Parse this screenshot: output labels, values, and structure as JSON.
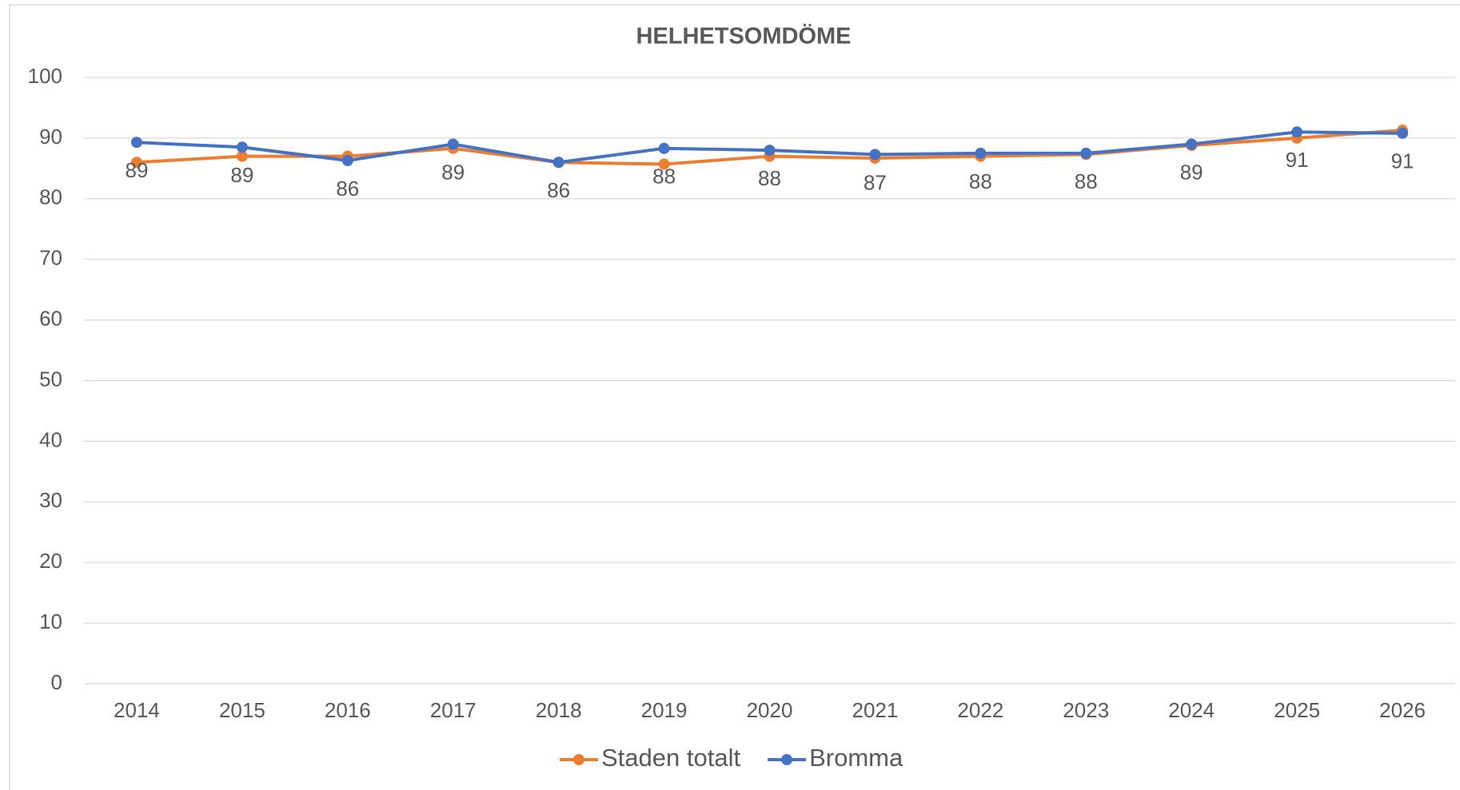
{
  "chart_data": {
    "type": "line",
    "title": "HELHETSOMDÖME",
    "categories": [
      "2014",
      "2015",
      "2016",
      "2017",
      "2018",
      "2019",
      "2020",
      "2021",
      "2022",
      "2023",
      "2024",
      "2025",
      "2026"
    ],
    "series": [
      {
        "name": "Staden totalt",
        "color": "#ed7d31",
        "values": [
          86,
          87,
          87,
          88.3,
          86,
          85.7,
          87,
          86.7,
          87,
          87.3,
          88.8,
          90,
          91.3
        ]
      },
      {
        "name": "Bromma",
        "color": "#4472c4",
        "values": [
          89.3,
          88.5,
          86.3,
          89,
          86,
          88.3,
          88,
          87.3,
          87.5,
          87.5,
          89,
          91,
          90.8
        ],
        "value_labels": [
          "89",
          "89",
          "86",
          "89",
          "86",
          "88",
          "88",
          "87",
          "88",
          "88",
          "89",
          "91",
          "91"
        ]
      }
    ],
    "ylim": [
      0,
      100
    ],
    "yticks": [
      0,
      10,
      20,
      30,
      40,
      50,
      60,
      70,
      80,
      90,
      100
    ],
    "grid": true,
    "legend": "bottom"
  }
}
